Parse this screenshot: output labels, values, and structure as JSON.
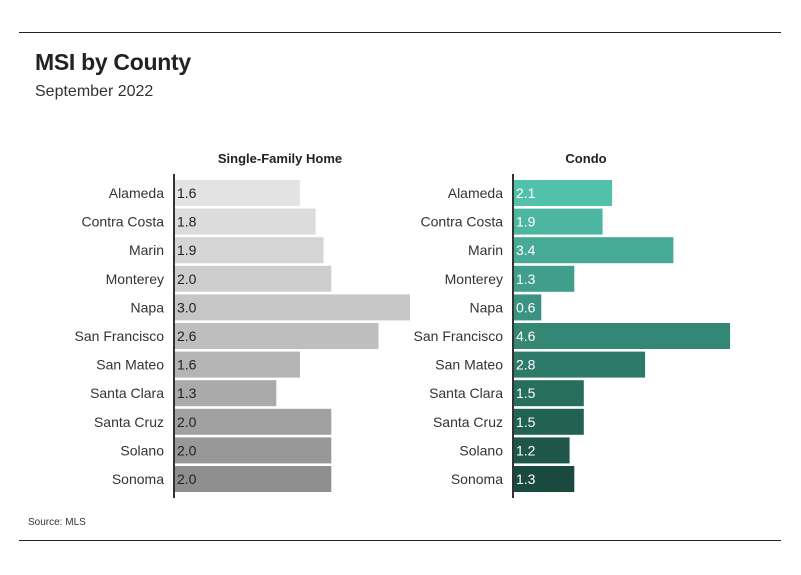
{
  "title": "MSI by County",
  "subtitle": "September 2022",
  "source": "Source: MLS",
  "chart_data": [
    {
      "type": "bar",
      "orientation": "horizontal",
      "title": "Single-Family Home",
      "categories": [
        "Alameda",
        "Contra Costa",
        "Marin",
        "Monterey",
        "Napa",
        "San Francisco",
        "San Mateo",
        "Santa Clara",
        "Santa Cruz",
        "Solano",
        "Sonoma"
      ],
      "values": [
        1.6,
        1.8,
        1.9,
        2.0,
        3.0,
        2.6,
        1.6,
        1.3,
        2.0,
        2.0,
        2.0
      ],
      "labels": [
        "1.6",
        "1.8",
        "1.9",
        "2.0",
        "3.0",
        "2.6",
        "1.6",
        "1.3",
        "2.0",
        "2.0",
        "2.0"
      ],
      "xlim": [
        0,
        3.0
      ],
      "grid": false,
      "colors": [
        "#e3e3e3",
        "#dcdcdc",
        "#d5d5d5",
        "#cecece",
        "#c6c6c6",
        "#bebebe",
        "#b4b4b4",
        "#aaaaaa",
        "#a1a1a1",
        "#989898",
        "#8f8f8f"
      ]
    },
    {
      "type": "bar",
      "orientation": "horizontal",
      "title": "Condo",
      "categories": [
        "Alameda",
        "Contra Costa",
        "Marin",
        "Monterey",
        "Napa",
        "San Francisco",
        "San Mateo",
        "Santa Clara",
        "Santa Cruz",
        "Solano",
        "Sonoma"
      ],
      "values": [
        2.1,
        1.9,
        3.4,
        1.3,
        0.6,
        4.6,
        2.8,
        1.5,
        1.5,
        1.2,
        1.3
      ],
      "labels": [
        "2.1",
        "1.9",
        "3.4",
        "1.3",
        "0.6",
        "4.6",
        "2.8",
        "1.5",
        "1.5",
        "1.2",
        "1.3"
      ],
      "xlim": [
        0,
        4.6
      ],
      "grid": false,
      "colors": [
        "#52c1ab",
        "#4cb6a1",
        "#46aa96",
        "#409e8b",
        "#3a9280",
        "#348675",
        "#2e7a6a",
        "#286e5f",
        "#226254",
        "#1e5649",
        "#1a4a3f"
      ]
    }
  ]
}
